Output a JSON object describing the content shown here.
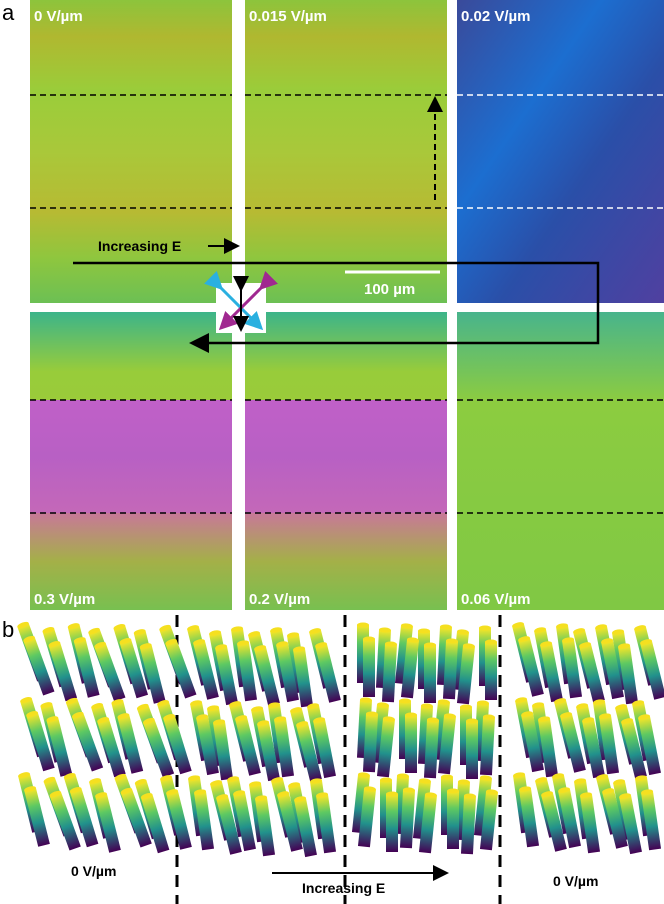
{
  "panel_a": {
    "label": "a",
    "images": [
      {
        "label": "0 V/µm"
      },
      {
        "label": "0.015 V/µm"
      },
      {
        "label": "0.02 V/µm"
      },
      {
        "label": "0.3 V/µm"
      },
      {
        "label": "0.2 V/µm"
      },
      {
        "label": "0.06 V/µm"
      }
    ],
    "arrow_label": "Increasing E",
    "scale_bar": "100 µm"
  },
  "panel_b": {
    "label": "b",
    "left_caption": "0 V/µm",
    "right_caption": "0 V/µm",
    "arrow_label": "Increasing E"
  }
}
